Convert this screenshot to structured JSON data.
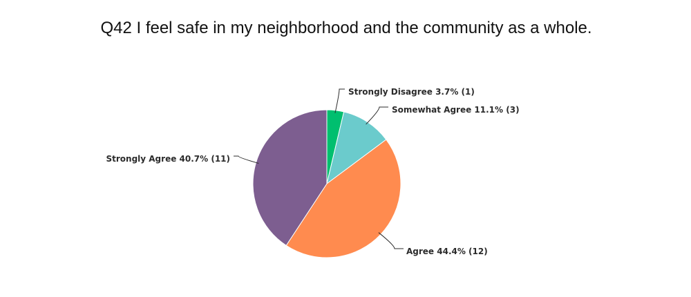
{
  "chart_data": {
    "type": "pie",
    "title": "Q42 I feel safe in my neighborhood and the community as a whole.",
    "slices": [
      {
        "label": "Strongly Disagree",
        "percent": 3.7,
        "count": 1,
        "color": "#00BF6F",
        "text": "Strongly Disagree 3.7% (1)"
      },
      {
        "label": "Somewhat Agree",
        "percent": 11.1,
        "count": 3,
        "color": "#6BCBCC",
        "text": "Somewhat Agree 11.1% (3)"
      },
      {
        "label": "Agree",
        "percent": 44.4,
        "count": 12,
        "color": "#FF8B4F",
        "text": "Agree 44.4% (12)"
      },
      {
        "label": "Strongly Agree",
        "percent": 40.7,
        "count": 11,
        "color": "#7D5E90",
        "text": "Strongly Agree 40.7% (11)"
      }
    ]
  }
}
